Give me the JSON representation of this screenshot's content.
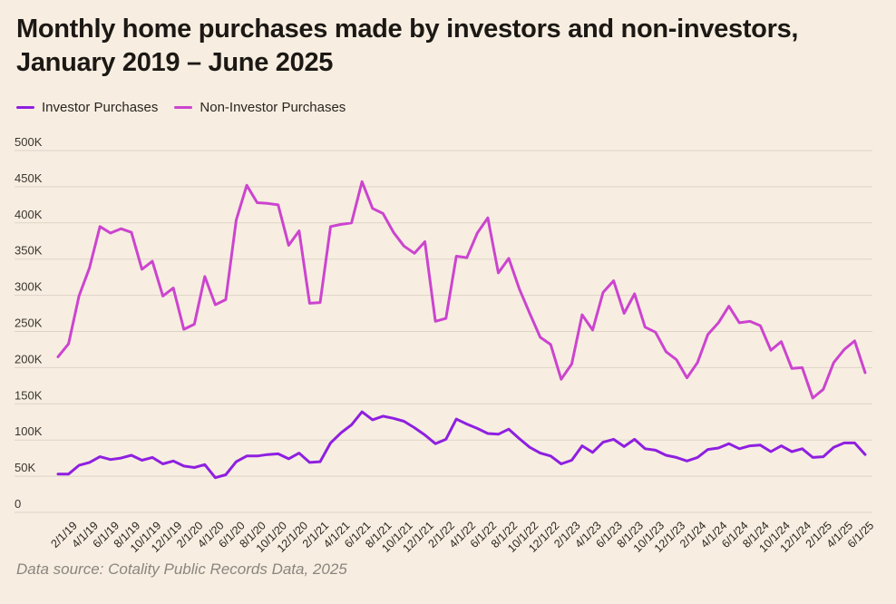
{
  "title_line1": "Monthly home purchases made by investors and non-investors,",
  "title_line2": "January 2019 – June 2025",
  "source": "Data source: Cotality Public Records Data, 2025",
  "colors": {
    "investor": "#8f1fe0",
    "non_investor": "#cc44cf",
    "grid": "#ddd4c6",
    "background": "#f7eee1"
  },
  "chart_data": {
    "type": "line",
    "title": "Monthly home purchases made by investors and non-investors, January 2019 – June 2025",
    "xlabel": "",
    "ylabel": "",
    "ylim": [
      0,
      500000
    ],
    "yticks": [
      0,
      50000,
      100000,
      150000,
      200000,
      250000,
      300000,
      350000,
      400000,
      450000,
      500000
    ],
    "ytick_labels": [
      "0",
      "50K",
      "100K",
      "150K",
      "200K",
      "250K",
      "300K",
      "350K",
      "400K",
      "450K",
      "500K"
    ],
    "x_tick_labels": [
      "2/1/19",
      "4/1/19",
      "6/1/19",
      "8/1/19",
      "10/1/19",
      "12/1/19",
      "2/1/20",
      "4/1/20",
      "6/1/20",
      "8/1/20",
      "10/1/20",
      "12/1/20",
      "2/1/21",
      "4/1/21",
      "6/1/21",
      "8/1/21",
      "10/1/21",
      "12/1/21",
      "2/1/22",
      "4/1/22",
      "6/1/22",
      "8/1/22",
      "10/1/22",
      "12/1/22",
      "2/1/23",
      "4/1/23",
      "6/1/23",
      "8/1/23",
      "10/1/23",
      "12/1/23",
      "2/1/24",
      "4/1/24",
      "6/1/24",
      "8/1/24",
      "10/1/24",
      "12/1/24",
      "2/1/25",
      "4/1/25",
      "6/1/25"
    ],
    "x_tick_month_index": [
      1,
      3,
      5,
      7,
      9,
      11,
      13,
      15,
      17,
      19,
      21,
      23,
      25,
      27,
      29,
      31,
      33,
      35,
      37,
      39,
      41,
      43,
      45,
      47,
      49,
      51,
      53,
      55,
      57,
      59,
      61,
      63,
      65,
      67,
      69,
      71,
      73,
      75,
      77
    ],
    "legend_position": "top-left",
    "series": [
      {
        "name": "Investor Purchases",
        "color": "#8f1fe0",
        "values": [
          53000,
          53000,
          65000,
          69000,
          77000,
          73000,
          75000,
          79000,
          72000,
          76000,
          67000,
          71000,
          64000,
          62000,
          66000,
          48000,
          52000,
          70000,
          78000,
          78000,
          80000,
          81000,
          74000,
          82000,
          69000,
          70000,
          96000,
          110000,
          121000,
          139000,
          128000,
          133000,
          130000,
          126000,
          117000,
          107000,
          95000,
          101000,
          129000,
          122000,
          116000,
          109000,
          108000,
          115000,
          102000,
          90000,
          82000,
          78000,
          67000,
          72000,
          92000,
          83000,
          97000,
          101000,
          91000,
          101000,
          88000,
          86000,
          79000,
          76000,
          71000,
          76000,
          87000,
          89000,
          95000,
          88000,
          92000,
          93000,
          84000,
          92000,
          84000,
          88000,
          76000,
          77000,
          90000,
          96000,
          96000,
          80000
        ]
      },
      {
        "name": "Non-Investor Purchases",
        "color": "#cc44cf",
        "values": [
          215000,
          233000,
          299000,
          338000,
          395000,
          386000,
          392000,
          387000,
          336000,
          347000,
          299000,
          310000,
          253000,
          260000,
          326000,
          287000,
          294000,
          404000,
          452000,
          428000,
          427000,
          425000,
          369000,
          389000,
          289000,
          290000,
          395000,
          398000,
          400000,
          457000,
          420000,
          413000,
          387000,
          368000,
          358000,
          374000,
          264000,
          268000,
          354000,
          352000,
          386000,
          407000,
          331000,
          351000,
          309000,
          275000,
          242000,
          232000,
          184000,
          205000,
          273000,
          252000,
          304000,
          320000,
          275000,
          302000,
          256000,
          249000,
          222000,
          211000,
          186000,
          207000,
          246000,
          262000,
          285000,
          262000,
          264000,
          258000,
          224000,
          236000,
          199000,
          200000,
          158000,
          170000,
          207000,
          225000,
          237000,
          193000
        ]
      }
    ]
  }
}
